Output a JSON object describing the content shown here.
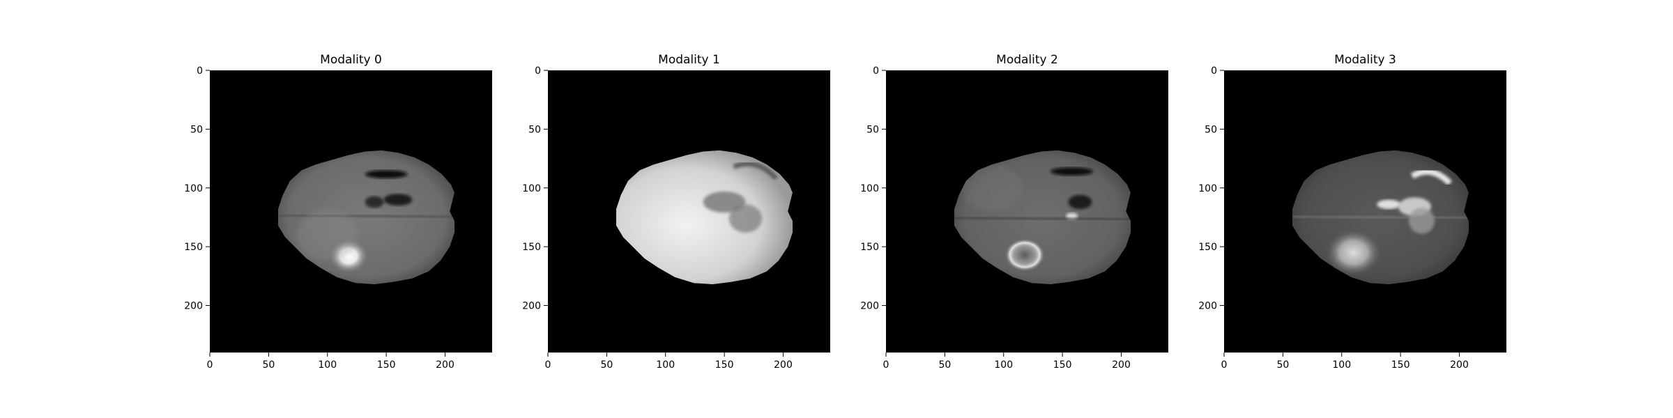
{
  "panels": [
    {
      "title": "Modality 0",
      "variant": "flair"
    },
    {
      "title": "Modality 1",
      "variant": "t1"
    },
    {
      "title": "Modality 2",
      "variant": "t1ce"
    },
    {
      "title": "Modality 3",
      "variant": "t2"
    }
  ],
  "axes": {
    "x_ticks": [
      "0",
      "50",
      "100",
      "150",
      "200"
    ],
    "y_ticks": [
      "0",
      "50",
      "100",
      "150",
      "200"
    ],
    "extent": 240
  },
  "colors": {
    "background": "#000000",
    "frame": "#000000"
  }
}
